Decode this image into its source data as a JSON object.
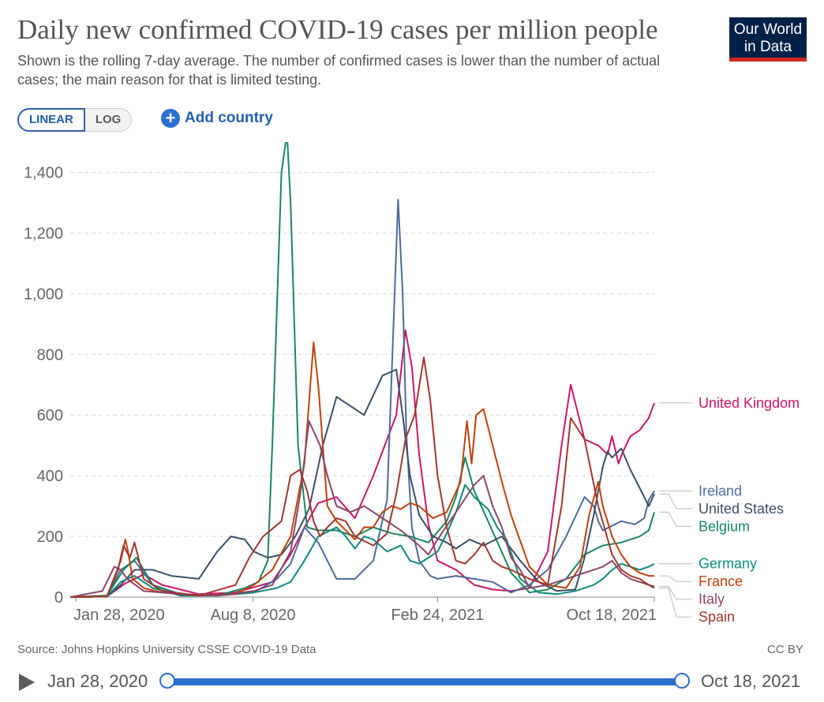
{
  "header": {
    "title": "Daily new confirmed COVID-19 cases per million people",
    "subtitle": "Shown is the rolling 7-day average. The number of confirmed cases is lower than the number of actual cases; the main reason for that is limited testing.",
    "logo_line1": "Our World",
    "logo_line2": "in Data"
  },
  "controls": {
    "linear_label": "LINEAR",
    "log_label": "LOG",
    "add_country_label": "Add country"
  },
  "footer": {
    "source": "Source: Johns Hopkins University CSSE COVID-19 Data",
    "license": "CC BY"
  },
  "timeline": {
    "start_label": "Jan 28, 2020",
    "end_label": "Oct 18, 2021"
  },
  "chart_data": {
    "type": "line",
    "title": "Daily new confirmed COVID-19 cases per million people",
    "xlabel": "",
    "ylabel": "",
    "x_unit": "days since Jan 22, 2020",
    "xlim": [
      0,
      636
    ],
    "ylim": [
      0,
      1500
    ],
    "yticks": [
      0,
      200,
      400,
      600,
      800,
      1000,
      1200,
      1400
    ],
    "ytick_labels": [
      "0",
      "200",
      "400",
      "600",
      "800",
      "1,000",
      "1,200",
      "1,400"
    ],
    "xticks": [
      6,
      199,
      400,
      636
    ],
    "xtick_labels": [
      "Jan 28, 2020",
      "Aug 8, 2020",
      "Feb 24, 2021",
      "Oct 18, 2021"
    ],
    "grid": true,
    "series": [
      {
        "name": "United Kingdom",
        "color": "#ce1567",
        "x": [
          0,
          40,
          60,
          80,
          100,
          140,
          180,
          220,
          240,
          255,
          270,
          290,
          310,
          330,
          345,
          355,
          365,
          372,
          380,
          390,
          400,
          420,
          440,
          460,
          480,
          500,
          520,
          535,
          545,
          560,
          575,
          585,
          590,
          597,
          602,
          610,
          620,
          630,
          636
        ],
        "y": [
          0,
          2,
          45,
          75,
          40,
          10,
          15,
          50,
          140,
          230,
          310,
          330,
          260,
          400,
          520,
          600,
          880,
          760,
          470,
          240,
          120,
          90,
          40,
          25,
          20,
          30,
          150,
          500,
          700,
          520,
          500,
          470,
          530,
          440,
          480,
          530,
          550,
          590,
          640
        ]
      },
      {
        "name": "Ireland",
        "color": "#4c6a9c",
        "x": [
          0,
          40,
          55,
          70,
          90,
          120,
          160,
          200,
          225,
          240,
          255,
          270,
          290,
          310,
          330,
          345,
          357,
          362,
          366,
          372,
          380,
          392,
          400,
          420,
          440,
          460,
          480,
          500,
          520,
          540,
          560,
          570,
          575,
          580,
          600,
          615,
          625,
          630,
          636
        ],
        "y": [
          0,
          5,
          90,
          120,
          40,
          10,
          5,
          15,
          60,
          110,
          230,
          180,
          60,
          60,
          120,
          320,
          1310,
          1000,
          540,
          230,
          120,
          70,
          60,
          70,
          60,
          50,
          15,
          40,
          90,
          200,
          330,
          300,
          250,
          220,
          250,
          240,
          260,
          320,
          350
        ]
      },
      {
        "name": "Belgium",
        "color": "#18875c",
        "x": [
          0,
          40,
          58,
          72,
          90,
          120,
          160,
          190,
          205,
          215,
          220,
          230,
          236,
          240,
          248,
          258,
          270,
          290,
          310,
          330,
          350,
          370,
          390,
          410,
          420,
          430,
          440,
          455,
          480,
          500,
          520,
          540,
          560,
          580,
          600,
          620,
          630,
          636
        ],
        "y": [
          0,
          5,
          90,
          130,
          40,
          5,
          5,
          30,
          50,
          120,
          500,
          1400,
          1530,
          1300,
          500,
          230,
          220,
          220,
          200,
          230,
          210,
          200,
          180,
          250,
          330,
          460,
          350,
          250,
          80,
          15,
          25,
          60,
          140,
          170,
          180,
          200,
          220,
          280
        ]
      },
      {
        "name": "United States",
        "color": "#3b4f67",
        "x": [
          0,
          40,
          55,
          70,
          90,
          110,
          140,
          160,
          175,
          190,
          200,
          215,
          230,
          245,
          260,
          275,
          290,
          305,
          320,
          340,
          355,
          362,
          370,
          380,
          395,
          410,
          420,
          435,
          450,
          470,
          490,
          510,
          530,
          550,
          560,
          570,
          580,
          585,
          590,
          600,
          610,
          620,
          630,
          636
        ],
        "y": [
          0,
          2,
          40,
          90,
          90,
          70,
          60,
          150,
          200,
          190,
          150,
          130,
          140,
          200,
          290,
          500,
          660,
          630,
          600,
          730,
          750,
          600,
          400,
          270,
          200,
          180,
          160,
          190,
          170,
          200,
          120,
          50,
          20,
          25,
          130,
          270,
          430,
          480,
          460,
          490,
          420,
          360,
          300,
          340
        ]
      },
      {
        "name": "Germany",
        "color": "#0f8a7e",
        "x": [
          0,
          40,
          55,
          70,
          90,
          120,
          160,
          200,
          225,
          240,
          255,
          270,
          290,
          300,
          310,
          320,
          330,
          345,
          360,
          370,
          380,
          390,
          400,
          410,
          420,
          430,
          440,
          455,
          465,
          475,
          490,
          510,
          530,
          550,
          570,
          580,
          590,
          600,
          610,
          620,
          630,
          636
        ],
        "y": [
          0,
          2,
          50,
          70,
          30,
          5,
          5,
          15,
          30,
          50,
          120,
          200,
          230,
          200,
          160,
          200,
          190,
          150,
          170,
          120,
          110,
          130,
          150,
          210,
          280,
          370,
          330,
          290,
          230,
          190,
          60,
          15,
          10,
          20,
          40,
          60,
          90,
          110,
          100,
          90,
          100,
          110
        ]
      },
      {
        "name": "France",
        "color": "#c0410d",
        "x": [
          0,
          40,
          55,
          60,
          63,
          68,
          80,
          100,
          140,
          180,
          200,
          220,
          240,
          255,
          265,
          270,
          275,
          280,
          290,
          300,
          310,
          320,
          330,
          340,
          350,
          360,
          370,
          380,
          395,
          410,
          425,
          432,
          437,
          442,
          450,
          460,
          470,
          480,
          500,
          520,
          540,
          555,
          565,
          575,
          580,
          590,
          600,
          610,
          620,
          630,
          636
        ],
        "y": [
          0,
          3,
          120,
          190,
          150,
          60,
          30,
          15,
          5,
          10,
          40,
          90,
          200,
          440,
          840,
          700,
          500,
          300,
          250,
          220,
          190,
          230,
          230,
          280,
          300,
          290,
          310,
          300,
          260,
          280,
          380,
          580,
          440,
          600,
          620,
          500,
          380,
          270,
          100,
          40,
          30,
          100,
          270,
          380,
          300,
          200,
          140,
          100,
          80,
          70,
          70
        ]
      },
      {
        "name": "Italy",
        "color": "#8c4569",
        "x": [
          0,
          35,
          48,
          55,
          62,
          80,
          120,
          160,
          200,
          220,
          240,
          250,
          260,
          272,
          280,
          290,
          305,
          320,
          340,
          360,
          380,
          390,
          400,
          420,
          440,
          450,
          460,
          470,
          480,
          490,
          500,
          520,
          540,
          560,
          580,
          590,
          600,
          610,
          620,
          630,
          636
        ],
        "y": [
          0,
          20,
          100,
          90,
          60,
          20,
          10,
          5,
          20,
          40,
          150,
          330,
          580,
          500,
          400,
          300,
          280,
          300,
          260,
          220,
          170,
          140,
          190,
          280,
          370,
          400,
          300,
          230,
          130,
          90,
          30,
          40,
          60,
          80,
          100,
          120,
          80,
          60,
          50,
          40,
          35
        ]
      },
      {
        "name": "Spain",
        "color": "#a0362f",
        "x": [
          0,
          40,
          52,
          58,
          65,
          70,
          80,
          100,
          140,
          180,
          195,
          210,
          230,
          240,
          250,
          258,
          265,
          272,
          280,
          290,
          300,
          310,
          330,
          345,
          355,
          365,
          375,
          385,
          392,
          400,
          410,
          420,
          430,
          440,
          450,
          460,
          470,
          480,
          500,
          520,
          535,
          545,
          560,
          575,
          590,
          600,
          610,
          620,
          630,
          636
        ],
        "y": [
          0,
          2,
          90,
          170,
          130,
          180,
          60,
          20,
          5,
          40,
          130,
          200,
          250,
          400,
          420,
          350,
          250,
          200,
          230,
          260,
          250,
          200,
          170,
          210,
          340,
          520,
          600,
          790,
          650,
          400,
          230,
          120,
          110,
          140,
          180,
          120,
          100,
          90,
          60,
          40,
          300,
          590,
          520,
          300,
          140,
          90,
          70,
          60,
          40,
          30
        ]
      }
    ]
  }
}
